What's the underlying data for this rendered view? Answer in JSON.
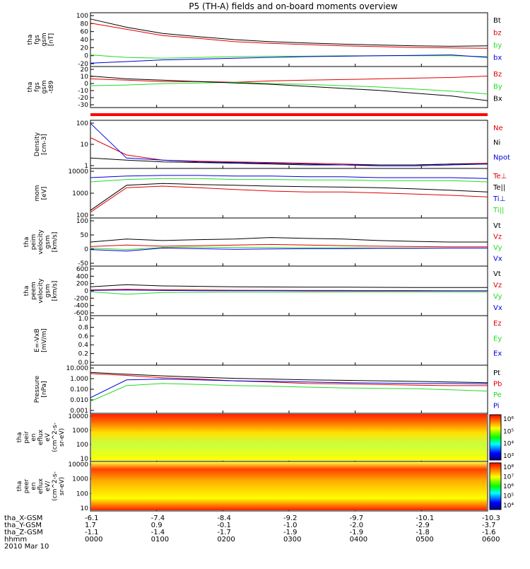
{
  "title": "P5 (TH-A) fields and on-board moments overview",
  "date_label": "2010 Mar 10",
  "colors": {
    "black": "#000000",
    "red": "#e00000",
    "green": "#22dd22",
    "blue": "#0000dd"
  },
  "chart_data": [
    {
      "type": "line",
      "ylabel_lines": [
        "tha",
        "fgs",
        "gsm",
        "[nT]"
      ],
      "yticks": [
        "100",
        "80",
        "60",
        "40",
        "20",
        "0",
        "-20"
      ],
      "ylim": [
        -30,
        100
      ],
      "series": [
        {
          "name": "Bt",
          "color": "black",
          "values": [
            85,
            65,
            50,
            42,
            35,
            30,
            27,
            24,
            22,
            20,
            19,
            20
          ]
        },
        {
          "name": "bz",
          "color": "red",
          "values": [
            75,
            60,
            45,
            38,
            30,
            26,
            23,
            20,
            18,
            16,
            15,
            14
          ]
        },
        {
          "name": "by",
          "color": "green",
          "values": [
            -2,
            -8,
            -10,
            -8,
            -6,
            -5,
            -5,
            -4,
            -4,
            -4,
            -4,
            -6
          ]
        },
        {
          "name": "bx",
          "color": "blue",
          "values": [
            -22,
            -18,
            -14,
            -12,
            -10,
            -8,
            -6,
            -5,
            -4,
            -3,
            -2,
            -8
          ]
        }
      ]
    },
    {
      "type": "line",
      "ylabel_lines": [
        "tha",
        "fgs",
        "gsm",
        "-t89"
      ],
      "ylabel2": "[nT]",
      "yticks": [
        "20",
        "10",
        "0",
        "-10",
        "-20",
        "-30"
      ],
      "ylim": [
        -38,
        22
      ],
      "series": [
        {
          "name": "Bz",
          "color": "red",
          "values": [
            4,
            2,
            0,
            0,
            -1,
            1,
            2,
            3,
            4,
            5,
            6,
            8
          ]
        },
        {
          "name": "By",
          "color": "green",
          "values": [
            -6,
            -5,
            -3,
            -2,
            -1,
            -3,
            -4,
            -6,
            -8,
            -11,
            -14,
            -18
          ]
        },
        {
          "name": "Bx",
          "color": "black",
          "values": [
            8,
            4,
            2,
            0,
            -2,
            -4,
            -7,
            -10,
            -13,
            -17,
            -21,
            -28
          ]
        }
      ]
    },
    {
      "type": "line",
      "ylabel_lines": [
        "Density",
        "[cm-3]"
      ],
      "yticks": [
        "100",
        "10",
        "1"
      ],
      "log": true,
      "ylim": [
        0.5,
        300
      ],
      "series": [
        {
          "name": "Ne",
          "color": "red",
          "values": [
            30,
            3,
            1.5,
            1.3,
            1.2,
            1.1,
            1.0,
            0.9,
            0.8,
            0.8,
            0.9,
            1.0
          ]
        },
        {
          "name": "Ni",
          "color": "black",
          "values": [
            2,
            1.5,
            1.2,
            1.1,
            1.0,
            0.9,
            0.8,
            0.8,
            0.8,
            0.8,
            0.9,
            0.9
          ]
        },
        {
          "name": "Npot",
          "color": "blue",
          "values": [
            200,
            2,
            1.5,
            1.2,
            1.1,
            1.0,
            0.9,
            0.8,
            0.7,
            0.7,
            0.8,
            0.9
          ]
        }
      ]
    },
    {
      "type": "line",
      "ylabel_lines": [
        "mom",
        "[eV]"
      ],
      "yticks": [
        "10000",
        "1000",
        "100"
      ],
      "log": true,
      "ylim": [
        40,
        15000
      ],
      "series": [
        {
          "name": "Te⊥",
          "color": "red",
          "values": [
            80,
            1500,
            1800,
            1500,
            1200,
            1000,
            900,
            900,
            800,
            700,
            600,
            500
          ]
        },
        {
          "name": "Te||",
          "color": "black",
          "values": [
            100,
            2000,
            2500,
            2200,
            2000,
            1800,
            1700,
            1600,
            1500,
            1300,
            1100,
            900
          ]
        },
        {
          "name": "Ti⊥",
          "color": "blue",
          "values": [
            5000,
            6000,
            6500,
            6500,
            6000,
            6000,
            5500,
            5500,
            5000,
            5000,
            5000,
            4500
          ]
        },
        {
          "name": "Ti||",
          "color": "green",
          "values": [
            3000,
            4000,
            4500,
            4500,
            4000,
            4000,
            3800,
            3800,
            3500,
            3500,
            3500,
            3000
          ]
        }
      ]
    },
    {
      "type": "line",
      "ylabel_lines": [
        "tha",
        "peim",
        "velocity",
        "gsm",
        "[km/s]"
      ],
      "yticks": [
        "100",
        "50",
        "0",
        "-50"
      ],
      "ylim": [
        -60,
        100
      ],
      "series": [
        {
          "name": "Vt",
          "color": "black",
          "values": [
            20,
            30,
            25,
            28,
            30,
            35,
            32,
            30,
            25,
            22,
            20,
            20
          ]
        },
        {
          "name": "Vz",
          "color": "red",
          "values": [
            5,
            10,
            6,
            8,
            10,
            12,
            10,
            8,
            6,
            5,
            4,
            4
          ]
        },
        {
          "name": "Vy",
          "color": "green",
          "values": [
            0,
            -5,
            2,
            3,
            2,
            2,
            1,
            1,
            0,
            0,
            0,
            0
          ]
        },
        {
          "name": "Vx",
          "color": "blue",
          "values": [
            -5,
            -10,
            0,
            -2,
            -4,
            -3,
            -2,
            -2,
            -1,
            -1,
            0,
            0
          ]
        }
      ]
    },
    {
      "type": "line",
      "ylabel_lines": [
        "tha",
        "peem",
        "velocity",
        "gsm",
        "[km/s]"
      ],
      "yticks": [
        "600",
        "400",
        "200",
        "0",
        "-200",
        "-400",
        "-600"
      ],
      "ylim": [
        -600,
        600
      ],
      "series": [
        {
          "name": "Vt",
          "color": "black",
          "values": [
            100,
            150,
            120,
            110,
            100,
            95,
            90,
            90,
            85,
            80,
            80,
            80
          ]
        },
        {
          "name": "Vz",
          "color": "red",
          "values": [
            20,
            40,
            25,
            20,
            15,
            12,
            10,
            10,
            8,
            8,
            5,
            5
          ]
        },
        {
          "name": "Vy",
          "color": "green",
          "values": [
            -20,
            -80,
            -40,
            -35,
            -30,
            -30,
            -30,
            -28,
            -25,
            -25,
            -25,
            -25
          ]
        },
        {
          "name": "Vx",
          "color": "blue",
          "values": [
            10,
            20,
            10,
            5,
            5,
            5,
            0,
            0,
            0,
            0,
            0,
            0
          ]
        }
      ]
    },
    {
      "type": "line",
      "ylabel_lines": [
        "E=-VxB",
        "[mV/m]"
      ],
      "yticks": [
        "1.0",
        "0.8",
        "0.6",
        "0.4",
        "0.2",
        "0.0"
      ],
      "ylim": [
        0,
        1
      ],
      "series": [
        {
          "name": "Ez",
          "color": "red",
          "values": []
        },
        {
          "name": "Ey",
          "color": "green",
          "values": []
        },
        {
          "name": "Ex",
          "color": "blue",
          "values": []
        }
      ]
    },
    {
      "type": "line",
      "ylabel_lines": [
        "Pressure",
        "[nPa]"
      ],
      "yticks": [
        "10.000",
        "1.000",
        "0.100",
        "0.010",
        "0.001"
      ],
      "log": true,
      "ylim": [
        0.001,
        10
      ],
      "series": [
        {
          "name": "Pt",
          "color": "black",
          "values": [
            2.5,
            1.8,
            1.3,
            1.0,
            0.8,
            0.7,
            0.6,
            0.55,
            0.5,
            0.45,
            0.4,
            0.35
          ]
        },
        {
          "name": "Pb",
          "color": "red",
          "values": [
            2,
            1.4,
            0.9,
            0.7,
            0.5,
            0.4,
            0.3,
            0.28,
            0.25,
            0.22,
            0.2,
            0.2
          ]
        },
        {
          "name": "Pe",
          "color": "green",
          "values": [
            0.01,
            0.2,
            0.3,
            0.25,
            0.2,
            0.18,
            0.15,
            0.13,
            0.12,
            0.11,
            0.09,
            0.07
          ]
        },
        {
          "name": "Pi",
          "color": "blue",
          "values": [
            0.02,
            0.6,
            0.7,
            0.6,
            0.5,
            0.45,
            0.4,
            0.35,
            0.33,
            0.3,
            0.3,
            0.28
          ]
        }
      ]
    },
    {
      "type": "heatmap",
      "ylabel_lines": [
        "tha",
        "peir",
        "en",
        "eflux",
        "eV",
        "(cm^2-s-",
        "sr-eV)"
      ],
      "yticks": [
        "10000",
        "1000",
        "100",
        "10"
      ],
      "colorbar_ticks": [
        "10⁶",
        "10⁵",
        "10⁴",
        "10³"
      ]
    },
    {
      "type": "heatmap",
      "ylabel_lines": [
        "tha",
        "peer",
        "en",
        "eflux",
        "eV/",
        "(cm^2-s-",
        "sr-eV)"
      ],
      "yticks": [
        "10000",
        "1000",
        "100",
        "10"
      ],
      "colorbar_ticks": [
        "10⁸",
        "10⁷",
        "10⁶",
        "10⁵",
        "10⁴"
      ]
    }
  ],
  "x_axis": {
    "tick_times": [
      "0000",
      "0100",
      "0200",
      "0300",
      "0400",
      "0500",
      "0600"
    ],
    "rows": [
      {
        "label": "tha_X-GSM",
        "values": [
          "-6.1",
          "-7.4",
          "-8.4",
          "-9.2",
          "-9.7",
          "-10.1",
          "-10.3"
        ]
      },
      {
        "label": "tha_Y-GSM",
        "values": [
          "1.7",
          "0.9",
          "-0.1",
          "-1.0",
          "-2.0",
          "-2.9",
          "-3.7"
        ]
      },
      {
        "label": "tha_Z-GSM",
        "values": [
          "-1.1",
          "-1.4",
          "-1.7",
          "-1.9",
          "-1.9",
          "-1.8",
          "-1.6"
        ]
      },
      {
        "label": "hhmm",
        "values": []
      }
    ]
  }
}
